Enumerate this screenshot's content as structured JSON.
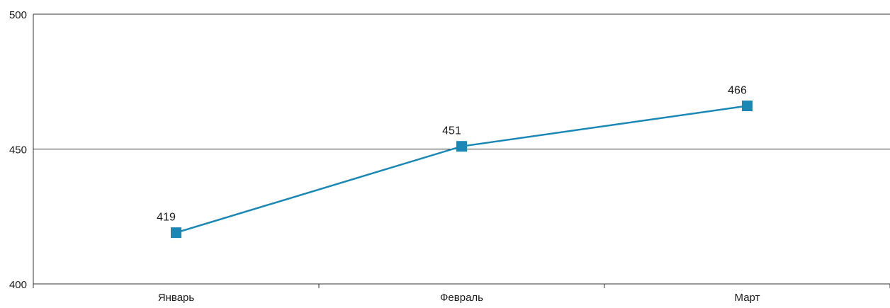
{
  "chart_data": {
    "type": "line",
    "title": "",
    "xlabel": "",
    "ylabel": "",
    "categories": [
      "Январь",
      "Февраль",
      "Март"
    ],
    "series": [
      {
        "values": [
          419,
          451,
          466
        ],
        "color": "#1a87b5"
      }
    ],
    "ylim": [
      400,
      500
    ],
    "yticks": [
      "400",
      "450",
      "500"
    ],
    "data_labels": [
      "419",
      "451",
      "466"
    ],
    "grid": true,
    "marker": "square"
  }
}
